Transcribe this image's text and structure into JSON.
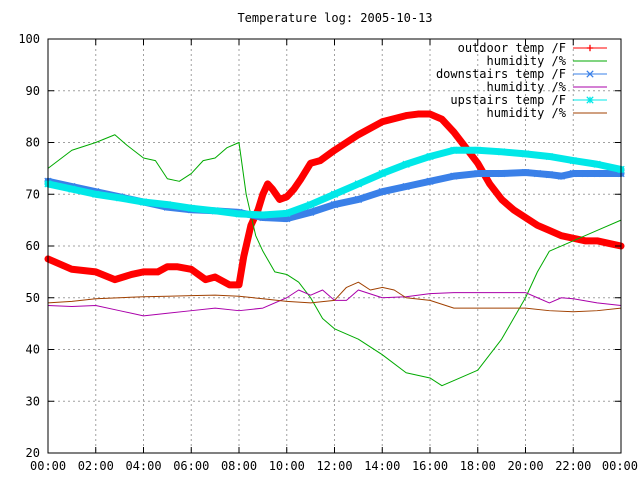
{
  "chart_data": {
    "type": "line",
    "title": "Temperature log: 2005-10-13",
    "xlabel": "",
    "ylabel": "",
    "xlim": [
      0,
      24
    ],
    "ylim": [
      20,
      100
    ],
    "grid": true,
    "legend_position": "top-right",
    "x_tick_labels": [
      "00:00",
      "02:00",
      "04:00",
      "06:00",
      "08:00",
      "10:00",
      "12:00",
      "14:00",
      "16:00",
      "18:00",
      "20:00",
      "22:00",
      "00:00"
    ],
    "y_tick_labels": [
      "20",
      "30",
      "40",
      "50",
      "60",
      "70",
      "80",
      "90",
      "100"
    ],
    "series": [
      {
        "name": "outdoor temp /F",
        "color": "#ff0000",
        "marker": "plus",
        "x": [
          0,
          1,
          2,
          2.8,
          3.5,
          4,
          4.6,
          5,
          5.4,
          6,
          6.6,
          7,
          7.6,
          8,
          8.2,
          8.5,
          8.8,
          9,
          9.2,
          9.4,
          9.7,
          10,
          10.3,
          10.6,
          11,
          11.4,
          12,
          12.5,
          13,
          14,
          15,
          15.5,
          16,
          16.5,
          17,
          17.5,
          18,
          18.5,
          19,
          19.5,
          20,
          20.5,
          21,
          21.5,
          22,
          22.5,
          23,
          23.5,
          24
        ],
        "y": [
          57.5,
          55.5,
          55,
          53.5,
          54.5,
          55,
          55,
          56,
          56,
          55.5,
          53.5,
          54,
          52.5,
          52.5,
          58,
          64,
          67,
          70,
          72,
          71,
          69,
          69.5,
          71,
          73,
          76,
          76.5,
          78.5,
          80,
          81.5,
          84,
          85.2,
          85.5,
          85.5,
          84.5,
          82,
          79,
          76,
          72,
          69,
          67,
          65.5,
          64,
          63,
          62,
          61.5,
          61,
          61,
          60.5,
          60
        ]
      },
      {
        "name": "humidity /%",
        "color": "#00aa00",
        "marker": "none",
        "x": [
          0,
          1,
          2,
          2.8,
          3.3,
          4,
          4.5,
          5,
          5.5,
          6,
          6.5,
          7,
          7.5,
          8,
          8.3,
          8.7,
          9,
          9.5,
          10,
          10.5,
          11,
          11.5,
          12,
          13,
          14,
          15,
          16,
          16.5,
          17,
          18,
          19,
          20,
          20.5,
          21,
          22,
          23,
          24
        ],
        "y": [
          75,
          78.5,
          80,
          81.5,
          79.5,
          77,
          76.5,
          73,
          72.5,
          74,
          76.5,
          77,
          79,
          80,
          70,
          62,
          59,
          55,
          54.5,
          53,
          50,
          46,
          44,
          42,
          39,
          35.5,
          34.5,
          33,
          34,
          36,
          42,
          50,
          55,
          59,
          61,
          63,
          65
        ]
      },
      {
        "name": "downstairs temp /F",
        "color": "#3a80e8",
        "marker": "cross",
        "x": [
          0,
          1,
          2,
          3,
          4,
          5,
          6,
          7,
          8,
          9,
          10,
          11,
          12,
          13,
          14,
          15,
          16,
          17,
          18,
          19,
          20,
          20.5,
          21,
          21.5,
          22,
          22.5,
          23,
          24
        ],
        "y": [
          72.5,
          71.5,
          70.5,
          69.5,
          68.5,
          67.5,
          67,
          66.8,
          66.5,
          65.5,
          65.3,
          66.5,
          68,
          69,
          70.5,
          71.5,
          72.5,
          73.5,
          74,
          74,
          74.2,
          74,
          73.8,
          73.5,
          74,
          74,
          74,
          74
        ]
      },
      {
        "name": "humidity /%",
        "color": "#aa00aa",
        "marker": "none",
        "x": [
          0,
          1,
          2,
          3,
          4,
          5,
          6,
          7,
          8,
          9,
          10,
          10.5,
          11,
          11.5,
          12,
          12.5,
          13,
          14,
          15,
          16,
          17,
          18,
          19,
          20,
          20.5,
          21,
          21.5,
          22,
          23,
          24
        ],
        "y": [
          48.5,
          48.3,
          48.5,
          47.5,
          46.5,
          47,
          47.5,
          48,
          47.5,
          48,
          50,
          51.5,
          50.5,
          51.5,
          49.5,
          49.5,
          51.5,
          50,
          50.2,
          50.8,
          51,
          51,
          51,
          51,
          50,
          49,
          50,
          49.8,
          49,
          48.5
        ]
      },
      {
        "name": "upstairs temp /F",
        "color": "#00e8e8",
        "marker": "star",
        "x": [
          0,
          1,
          2,
          3,
          4,
          5,
          6,
          7,
          8,
          9,
          10,
          11,
          12,
          13,
          14,
          15,
          16,
          17,
          18,
          19,
          20,
          21,
          22,
          23,
          24
        ],
        "y": [
          72,
          71,
          70,
          69.3,
          68.5,
          68,
          67.3,
          66.8,
          66.2,
          66,
          66.3,
          68,
          70,
          72,
          74,
          75.8,
          77.3,
          78.5,
          78.5,
          78.2,
          77.8,
          77.3,
          76.5,
          75.8,
          74.8
        ]
      },
      {
        "name": "humidity /%",
        "color": "#a04000",
        "marker": "none",
        "x": [
          0,
          1,
          2,
          3,
          4,
          5,
          6,
          7,
          8,
          9,
          10,
          11,
          12,
          12.5,
          13,
          13.5,
          14,
          14.5,
          15,
          16,
          17,
          18,
          19,
          20,
          21,
          22,
          23,
          24
        ],
        "y": [
          49,
          49.3,
          49.8,
          50,
          50.2,
          50.3,
          50.4,
          50.5,
          50.3,
          49.8,
          49.3,
          49,
          49.5,
          52,
          53,
          51.5,
          52,
          51.5,
          50,
          49.5,
          48,
          48,
          48,
          48,
          47.5,
          47.3,
          47.5,
          48
        ]
      }
    ]
  }
}
